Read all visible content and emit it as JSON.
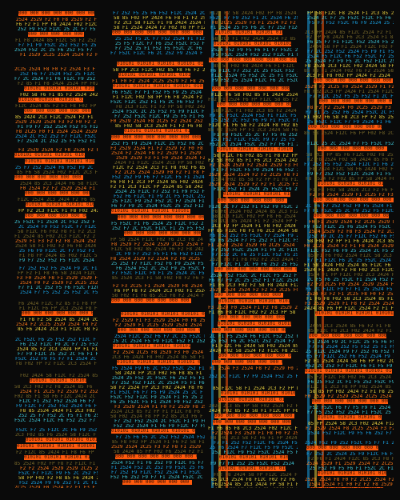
{
  "palette": {
    "background": "#0a0a0a",
    "accent_orange": "#ff5a0d",
    "blue": "#1aa3e6",
    "yellow": "#e8d040",
    "teal": "#3fc7d8"
  },
  "glyph_strings": {
    "bar_tokens": "010101 010101 010101 010101 010101 010101",
    "circle_tokens": "000 000 000 000 000 000 000 000 000",
    "blue_tokens": "F7 252 F52 2524 F1 F52C 25 F6 F5 2C F9 F12C",
    "yellow_tokens": "58 F02 F8 F1 F2 2524 F12C 85 2424 FP 2C3 F6",
    "hex_tokens": "F2 2524 2529 F2 2524 2529 F3 F0 F8 F1 2C25"
  }
}
